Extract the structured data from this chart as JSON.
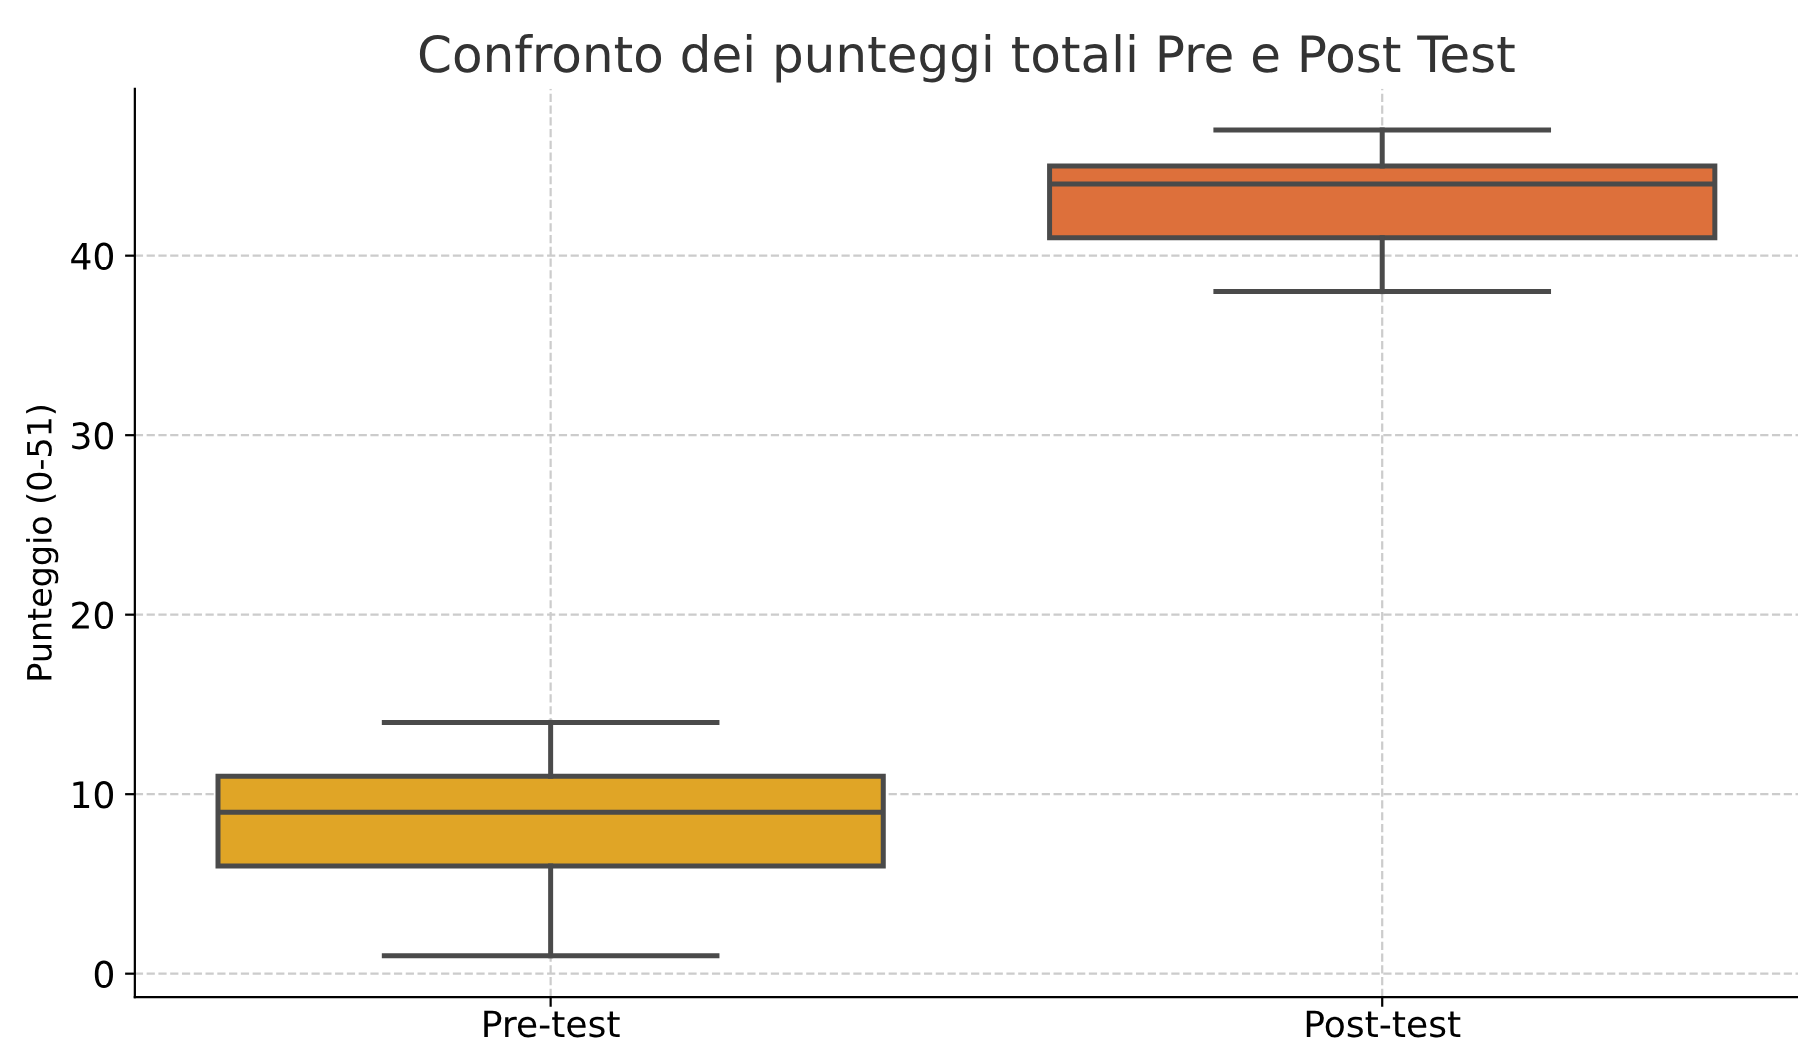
{
  "chart_data": {
    "type": "box",
    "title": "Confronto dei punteggi totali Pre e Post Test",
    "ylabel": "Punteggio (0-51)",
    "categories": [
      "Pre-test",
      "Post-test"
    ],
    "boxes": [
      {
        "low": 1,
        "q1": 6,
        "median": 9,
        "q3": 11,
        "high": 14
      },
      {
        "low": 38,
        "q1": 41,
        "median": 44,
        "q3": 45,
        "high": 47
      }
    ],
    "colors": [
      "#e0a526",
      "#dd703b"
    ],
    "ylim": [
      -1.3,
      49.3
    ],
    "yticks": [
      0,
      10,
      20,
      30,
      40
    ],
    "grid": true
  }
}
